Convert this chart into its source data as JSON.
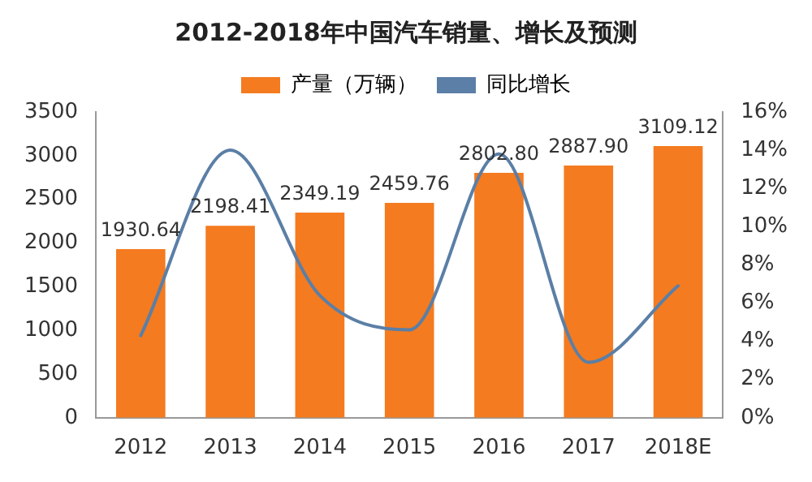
{
  "chart_data": {
    "type": "bar",
    "title": "2012-2018年中国汽车销量、增长及预测",
    "categories": [
      "2012",
      "2013",
      "2014",
      "2015",
      "2016",
      "2017",
      "2018E"
    ],
    "series": [
      {
        "name": "产量（万辆）",
        "color": "#f47b20",
        "values": [
          1930.64,
          2198.41,
          2349.19,
          2459.76,
          2802.8,
          2887.9,
          3109.12
        ],
        "value_labels": [
          "1930.64",
          "2198.41",
          "2349.19",
          "2459.76",
          "2802.80",
          "2887.90",
          "3109.12"
        ]
      },
      {
        "name": "同比增长",
        "type": "line",
        "axis": "y2",
        "color": "#5b7fa6",
        "values": [
          4.3,
          14.0,
          6.4,
          4.6,
          13.8,
          2.9,
          6.9
        ]
      }
    ],
    "ylim": [
      0,
      3500
    ],
    "yticks": [
      0,
      500,
      1000,
      1500,
      2000,
      2500,
      3000,
      3500
    ],
    "y2lim": [
      0,
      16
    ],
    "y2ticks": [
      {
        "value": 0,
        "label": "0%"
      },
      {
        "value": 2,
        "label": "2%"
      },
      {
        "value": 4,
        "label": "4%"
      },
      {
        "value": 6,
        "label": "6%"
      },
      {
        "value": 8,
        "label": "8%"
      },
      {
        "value": 10,
        "label": "10%"
      },
      {
        "value": 12,
        "label": "12%"
      },
      {
        "value": 14,
        "label": "14%"
      },
      {
        "value": 16,
        "label": "16%"
      }
    ],
    "legend": "top",
    "grid": false,
    "marker": "none"
  }
}
